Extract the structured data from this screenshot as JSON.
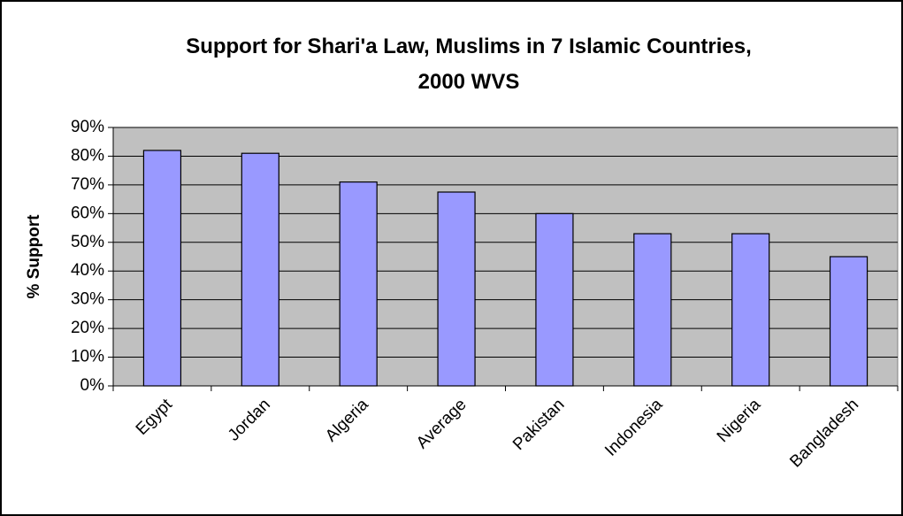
{
  "chart_data": {
    "type": "bar",
    "title": [
      "Support for Shari'a Law, Muslims in 7 Islamic Countries,",
      "2000 WVS"
    ],
    "y_label": "% Support",
    "categories": [
      "Egypt",
      "Jordan",
      "Algeria",
      "Average",
      "Pakistan",
      "Indonesia",
      "Nigeria",
      "Bangladesh"
    ],
    "values": [
      82,
      81,
      71,
      67.5,
      60,
      53,
      53,
      45
    ],
    "color": "#9999ff",
    "ylim": [
      0,
      90
    ],
    "yticks": [
      {
        "value": 0,
        "label": "0%"
      },
      {
        "value": 10,
        "label": "10%"
      },
      {
        "value": 20,
        "label": "20%"
      },
      {
        "value": 30,
        "label": "30%"
      },
      {
        "value": 40,
        "label": "40%"
      },
      {
        "value": 50,
        "label": "50%"
      },
      {
        "value": 60,
        "label": "60%"
      },
      {
        "value": 70,
        "label": "70%"
      },
      {
        "value": 80,
        "label": "80%"
      },
      {
        "value": 90,
        "label": "90%"
      }
    ],
    "grid": true
  }
}
